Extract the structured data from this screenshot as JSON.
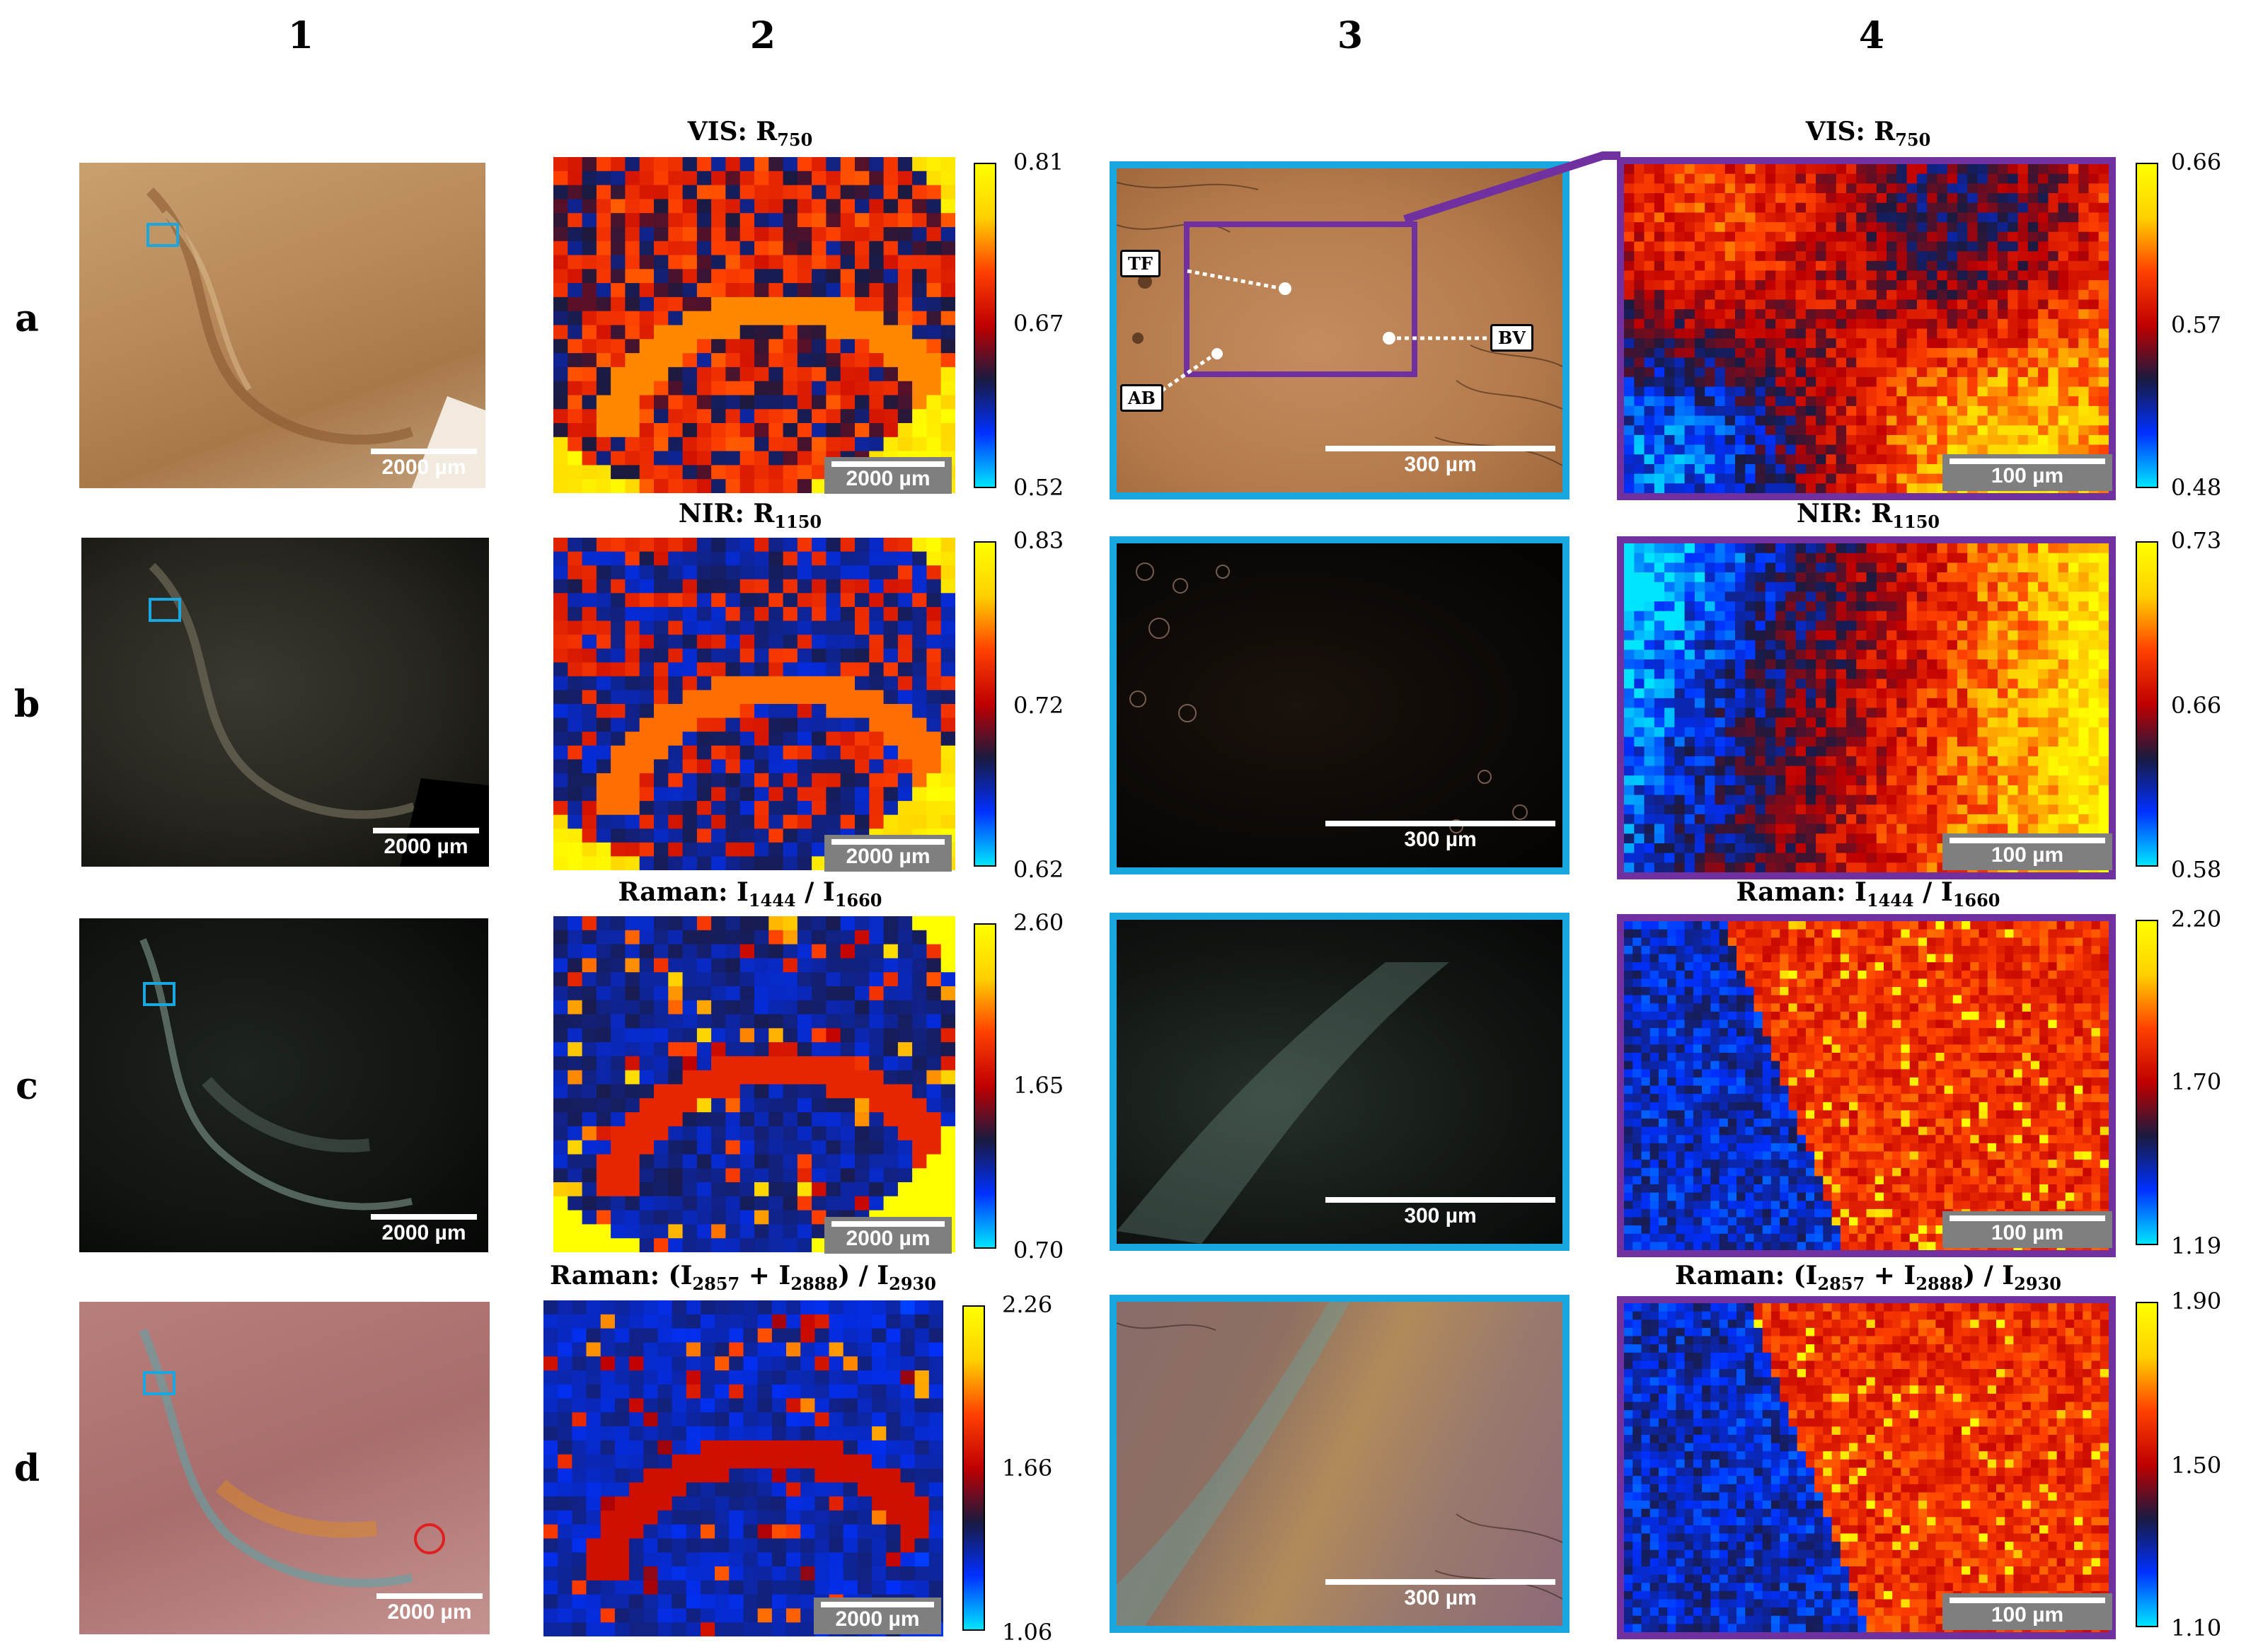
{
  "column_headers": [
    "1",
    "2",
    "3",
    "4"
  ],
  "row_headers": [
    "a",
    "b",
    "c",
    "d"
  ],
  "scale_labels": {
    "overview": "2000 µm",
    "map2": "2000 µm",
    "micro": "300 µm",
    "map4": "100 µm"
  },
  "annotations": {
    "tf": "TF",
    "bv": "BV",
    "ab": "AB"
  },
  "rows": [
    {
      "row": "a",
      "col2_title": {
        "main": "VIS: R",
        "sub": "750",
        "tail": ""
      },
      "col2_cbar": [
        "0.81",
        "0.67",
        "0.52"
      ],
      "col4_title": {
        "main": "VIS: R",
        "sub": "750",
        "tail": ""
      },
      "col4_cbar": [
        "0.66",
        "0.57",
        "0.48"
      ]
    },
    {
      "row": "b",
      "col2_title": {
        "main": "NIR: R",
        "sub": "1150",
        "tail": ""
      },
      "col2_cbar": [
        "0.83",
        "0.72",
        "0.62"
      ],
      "col4_title": {
        "main": "NIR: R",
        "sub": "1150",
        "tail": ""
      },
      "col4_cbar": [
        "0.73",
        "0.66",
        "0.58"
      ]
    },
    {
      "row": "c",
      "col2_title": {
        "p1": "Raman: I",
        "s1": "1444",
        "p2": " / I",
        "s2": "1660"
      },
      "col2_cbar": [
        "2.60",
        "1.65",
        "0.70"
      ],
      "col4_title": {
        "p1": "Raman: I",
        "s1": "1444",
        "p2": " / I",
        "s2": "1660"
      },
      "col4_cbar": [
        "2.20",
        "1.70",
        "1.19"
      ]
    },
    {
      "row": "d",
      "col2_title": {
        "p1": "Raman: (I",
        "s1": "2857",
        "p2": " + I",
        "s2": "2888",
        "p3": ") / I",
        "s3": "2930"
      },
      "col2_cbar": [
        "2.26",
        "1.66",
        "1.06"
      ],
      "col4_title": {
        "p1": "Raman: (I",
        "s1": "2857",
        "p2": " + I",
        "s2": "2888",
        "p3": ") / I",
        "s3": "2930"
      },
      "col4_cbar": [
        "1.90",
        "1.50",
        "1.10"
      ]
    }
  ],
  "colors": {
    "blue_frame": "#1aa7e0",
    "purple_frame": "#7030a0",
    "colormap": [
      "#00e5ff",
      "#0030ff",
      "#1a1a40",
      "#c00000",
      "#ff4000",
      "#ffd000",
      "#ffff00"
    ]
  }
}
